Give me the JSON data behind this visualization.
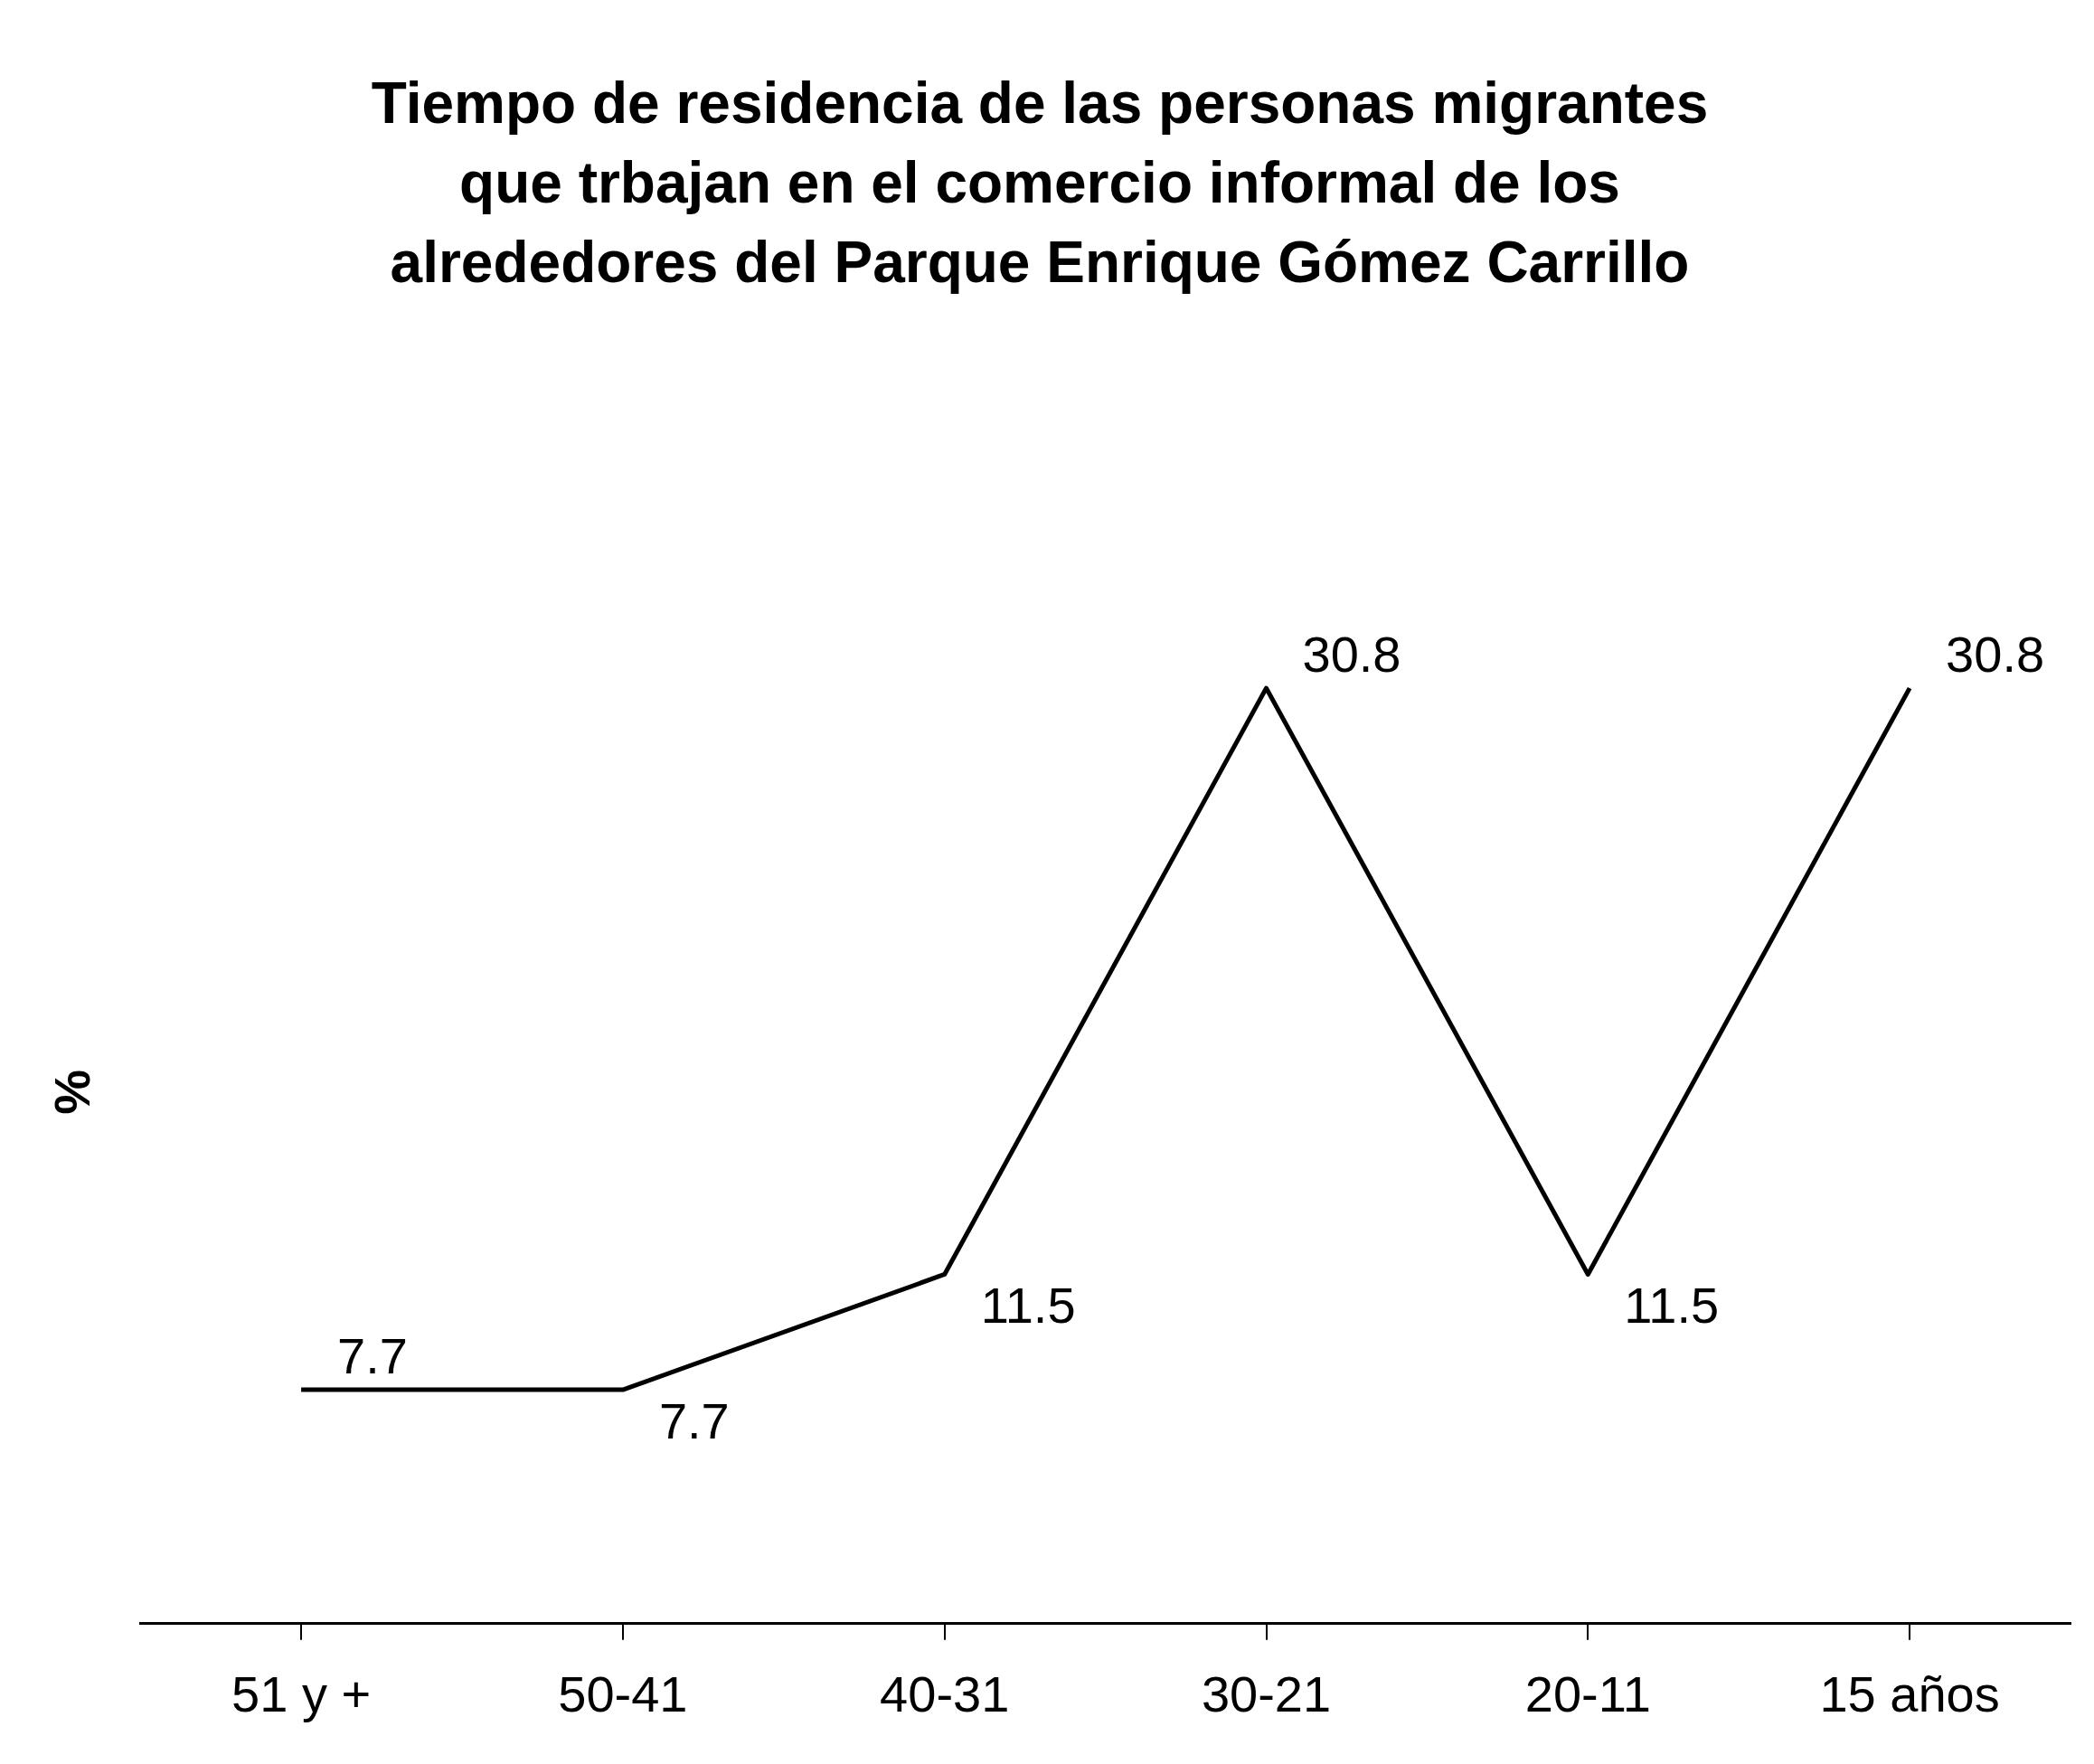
{
  "chart_data": {
    "type": "line",
    "title": "Tiempo de residencia de las personas migrantes que trbajan en el comercio informal de los alrededores del Parque Enrique Gómez Carrillo",
    "ylabel": "%",
    "categories": [
      "51 y +",
      "50-41",
      "40-31",
      "30-21",
      "20-11",
      "15 años"
    ],
    "series": [
      {
        "color": "#000000",
        "values": [
          7.7,
          7.7,
          11.5,
          30.8,
          11.5,
          30.8
        ]
      }
    ],
    "tick_labels": "x",
    "grid": false,
    "legend": false,
    "marker": "none",
    "line_style": "solid",
    "data_labels": true
  }
}
